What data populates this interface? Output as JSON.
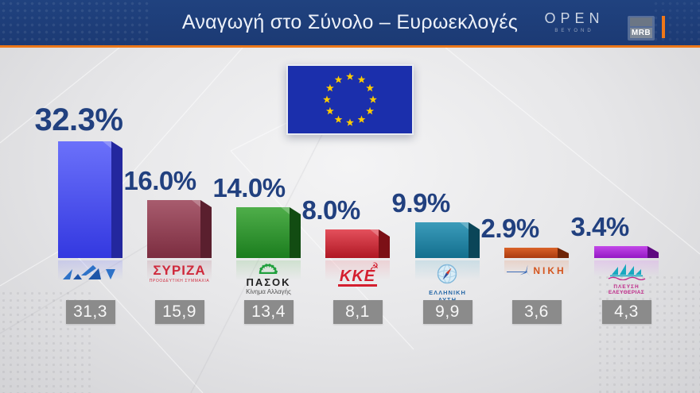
{
  "header": {
    "title": "Αναγωγή στο Σύνολο – Ευρωεκλογές",
    "open_logo": {
      "text": "OPEN",
      "subtext": "BEYOND"
    },
    "mrb_logo": "MRB",
    "bar_color": "#1c3a74",
    "accent_color": "#ec7718"
  },
  "colors": {
    "value_text": "#21407f",
    "prev_box_bg": "#8b8b8b",
    "prev_box_text": "#f7f7f7",
    "eu_flag_blue": "#1b2fac",
    "eu_star_yellow": "#ffcc00",
    "background": "#e7e7e9"
  },
  "eu_flag": {
    "name": "european-union-flag",
    "stars": 12
  },
  "chart_data": {
    "type": "bar",
    "title": "Αναγωγή στο Σύνολο – Ευρωεκλογές",
    "unit": "%",
    "ylim": [
      0,
      35
    ],
    "grid": false,
    "legend": "none",
    "categories": [
      "ΝΔ",
      "ΣΥΡΙΖΑ",
      "ΠΑΣΟΚ",
      "ΚΚΕ",
      "ΕΛΛΗΝΙΚΗ ΛΥΣΗ",
      "ΝΙΚΗ",
      "ΠΛΕΥΣΗ ΕΛΕΥΘΕΡΙΑΣ"
    ],
    "values": [
      32.3,
      16.0,
      14.0,
      8.0,
      9.9,
      2.9,
      3.4
    ],
    "value_labels": [
      "32.3%",
      "16.0%",
      "14.0%",
      "8.0%",
      "9.9%",
      "2.9%",
      "3.4%"
    ],
    "previous_values": [
      "31,3",
      "15,9",
      "13,4",
      "8,1",
      "9,9",
      "3,6",
      "4,3"
    ],
    "series": [
      {
        "party": "ΝΔ",
        "value": 32.3,
        "value_label": "32.3%",
        "previous": "31,3",
        "colors": {
          "face_top": "#6b71fa",
          "face_bottom": "#3338e0",
          "side": "#23279e",
          "reflect": "#8a8ff5"
        },
        "logo": {
          "type": "nd",
          "color": "#2e72c8",
          "color_dark": "#1e55a8"
        }
      },
      {
        "party": "ΣΥΡΙΖΑ",
        "value": 16.0,
        "value_label": "16.0%",
        "previous": "15,9",
        "colors": {
          "face_top": "#a85c6e",
          "face_bottom": "#7c2d40",
          "side": "#5a1f2e",
          "reflect": "#bb8490"
        },
        "logo": {
          "type": "syriza",
          "main": "ΣΥΡΙΖΑ",
          "sub": "ΠΡΟΟΔΕΥΤΙΚΗ ΣΥΜΜΑΧΙΑ",
          "color": "#cf2a3c"
        }
      },
      {
        "party": "ΠΑΣΟΚ",
        "value": 14.0,
        "value_label": "14.0%",
        "previous": "13,4",
        "colors": {
          "face_top": "#4fae4a",
          "face_bottom": "#1b7d1e",
          "side": "#124c12",
          "reflect": "#86c583"
        },
        "logo": {
          "type": "pasok",
          "main": "ΠΑΣΟΚ",
          "sub": "Κίνημα Αλλαγής",
          "sun_color": "#1fa03c"
        }
      },
      {
        "party": "ΚΚΕ",
        "value": 8.0,
        "value_label": "8.0%",
        "previous": "8,1",
        "colors": {
          "face_top": "#e4505c",
          "face_bottom": "#b01824",
          "side": "#7c1016",
          "reflect": "#ee8f97"
        },
        "logo": {
          "type": "kke",
          "main": "ΚΚΕ",
          "symbol": "hammer-and-sickle",
          "color": "#d41f2f"
        }
      },
      {
        "party": "ΕΛΛΗΝΙΚΗ ΛΥΣΗ",
        "value": 9.9,
        "value_label": "9.9%",
        "previous": "9,9",
        "colors": {
          "face_top": "#3b9cba",
          "face_bottom": "#136f8e",
          "side": "#0b4558",
          "reflect": "#7dbdd2"
        },
        "logo": {
          "type": "ellysi",
          "line1": "ΕΛΛΗΝΙΚΗ",
          "line2": "ΛΥΣΗ",
          "color": "#2a6aa8"
        }
      },
      {
        "party": "ΝΙΚΗ",
        "value": 2.9,
        "value_label": "2.9%",
        "previous": "3,6",
        "colors": {
          "face_top": "#da6228",
          "face_bottom": "#aa3a10",
          "side": "#6e2407",
          "reflect": "#e59a74"
        },
        "logo": {
          "type": "niki",
          "main": "ΝΙΚΗ",
          "color": "#d4551e",
          "icon_color": "#3b6cb8"
        }
      },
      {
        "party": "ΠΛΕΥΣΗ ΕΛΕΥΘΕΡΙΑΣ",
        "value": 3.4,
        "value_label": "3.4%",
        "previous": "4,3",
        "colors": {
          "face_top": "#c248e8",
          "face_bottom": "#9418c4",
          "side": "#5e0a80",
          "reflect": "#d98bef"
        },
        "logo": {
          "type": "plefsi",
          "line1": "ΠΛΕΥΣΗ",
          "line2": "ΕΛΕΥΘΕΡΙΑΣ",
          "ship_color": "#18a8c0",
          "text_color": "#c02a8a"
        }
      }
    ]
  }
}
